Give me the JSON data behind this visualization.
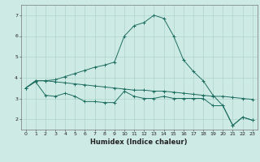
{
  "xlabel": "Humidex (Indice chaleur)",
  "background_color": "#ceeae4",
  "grid_color": "#aed4cc",
  "line_color": "#1e6e62",
  "xlim": [
    -0.5,
    23.5
  ],
  "ylim": [
    1.5,
    7.5
  ],
  "xticks": [
    0,
    1,
    2,
    3,
    4,
    5,
    6,
    7,
    8,
    9,
    10,
    11,
    12,
    13,
    14,
    15,
    16,
    17,
    18,
    19,
    20,
    21,
    22,
    23
  ],
  "yticks": [
    2,
    3,
    4,
    5,
    6,
    7
  ],
  "series": [
    {
      "x": [
        0,
        1,
        2,
        3,
        4,
        5,
        6,
        7,
        8,
        9,
        10,
        11,
        12,
        13,
        14,
        15,
        16,
        17,
        18,
        19,
        20,
        21,
        22,
        23
      ],
      "y": [
        3.5,
        3.85,
        3.85,
        3.9,
        4.05,
        4.2,
        4.35,
        4.5,
        4.6,
        4.75,
        6.0,
        6.5,
        6.65,
        7.0,
        6.85,
        6.0,
        4.85,
        4.3,
        3.85,
        3.15,
        2.65,
        1.7,
        2.1,
        1.95
      ]
    },
    {
      "x": [
        0,
        1,
        2,
        3,
        4,
        5,
        6,
        7,
        8,
        9,
        10,
        11,
        12,
        13,
        14,
        15,
        16,
        17,
        18,
        19,
        20,
        21,
        22,
        23
      ],
      "y": [
        3.5,
        3.85,
        3.85,
        3.8,
        3.75,
        3.7,
        3.65,
        3.6,
        3.55,
        3.5,
        3.45,
        3.4,
        3.4,
        3.35,
        3.35,
        3.3,
        3.25,
        3.2,
        3.15,
        3.1,
        3.1,
        3.05,
        3.0,
        2.95
      ]
    },
    {
      "x": [
        0,
        1,
        2,
        3,
        4,
        5,
        6,
        7,
        8,
        9,
        10,
        11,
        12,
        13,
        14,
        15,
        16,
        17,
        18,
        19,
        20,
        21,
        22,
        23
      ],
      "y": [
        3.5,
        3.8,
        3.15,
        3.1,
        3.25,
        3.1,
        2.85,
        2.85,
        2.8,
        2.8,
        3.35,
        3.1,
        3.0,
        3.0,
        3.1,
        3.0,
        3.0,
        3.0,
        3.0,
        2.65,
        2.65,
        1.7,
        2.1,
        1.95
      ]
    }
  ]
}
